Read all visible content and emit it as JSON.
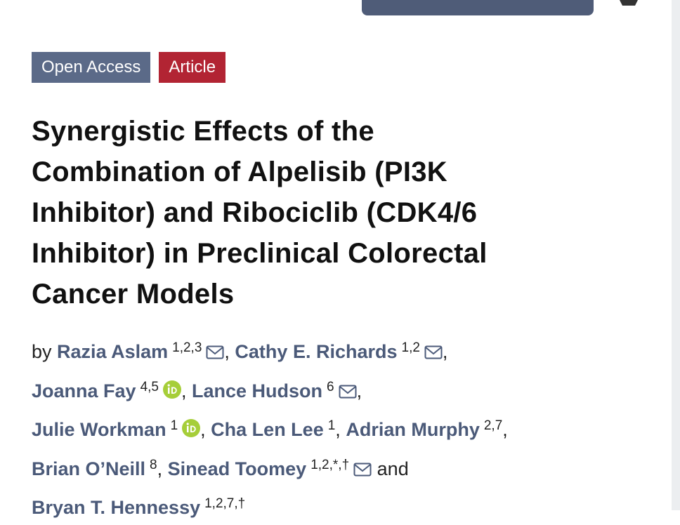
{
  "badges": [
    "Open Access",
    "Article"
  ],
  "title_lines": [
    "Synergistic Effects of the",
    "Combination of Alpelisib (PI3K",
    "Inhibitor) and Ribociclib (CDK4/6",
    "Inhibitor) in Preclinical Colorectal",
    "Cancer Models"
  ],
  "by": "by",
  "author_lines": [
    [
      {
        "name": "Razia Aslam",
        "sup": "1,2,3",
        "email": true,
        "sep": ","
      },
      {
        "name": "Cathy E. Richards",
        "sup": "1,2",
        "email": true,
        "sep": ","
      }
    ],
    [
      {
        "name": "Joanna Fay",
        "sup": "4,5",
        "orcid": true,
        "sep": ","
      },
      {
        "name": "Lance Hudson",
        "sup": "6",
        "email": true,
        "sep": ","
      }
    ],
    [
      {
        "name": "Julie Workman",
        "sup": "1",
        "orcid": true,
        "sep": ","
      },
      {
        "name": "Cha Len Lee",
        "sup": "1",
        "sep": ","
      },
      {
        "name": "Adrian Murphy",
        "sup": "2,7",
        "sep": ","
      }
    ],
    [
      {
        "name": "Brian O’Neill",
        "sup": "8",
        "sep": ","
      },
      {
        "name": "Sinead Toomey",
        "sup": "1,2,*,†",
        "email": true,
        "sep": "and"
      }
    ],
    [
      {
        "name": "Bryan T. Hennessy",
        "sup": "1,2,7,†"
      }
    ]
  ]
}
